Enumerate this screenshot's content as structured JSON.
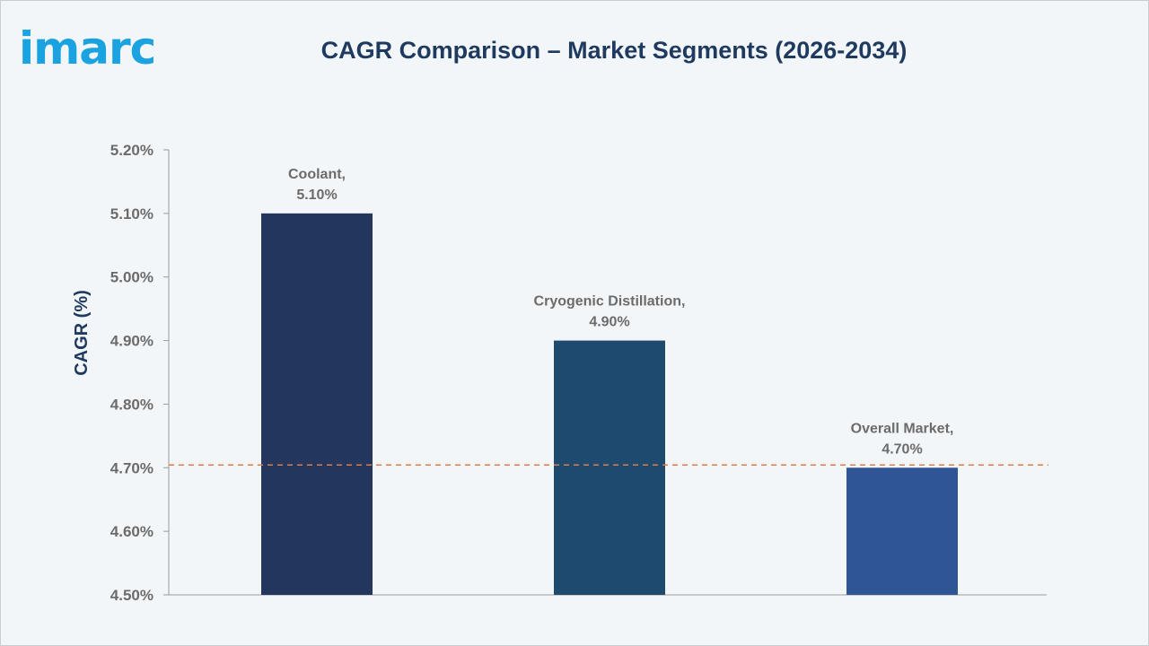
{
  "brand": {
    "logo_text": "imarc"
  },
  "chart_data": {
    "type": "bar",
    "title": "CAGR Comparison – Market Segments (2026-2034)",
    "ylabel": "CAGR (%)",
    "xlabel": "",
    "ylim": [
      4.5,
      5.2
    ],
    "yticks": [
      4.5,
      4.6,
      4.7,
      4.8,
      4.9,
      5.0,
      5.1,
      5.2
    ],
    "ytick_labels": [
      "4.50%",
      "4.60%",
      "4.70%",
      "4.80%",
      "4.90%",
      "5.00%",
      "5.10%",
      "5.20%"
    ],
    "categories": [
      "Coolant",
      "Cryogenic Distillation",
      "Overall Market"
    ],
    "values": [
      5.1,
      4.9,
      4.7
    ],
    "data_labels": [
      [
        "Coolant,",
        "5.10%"
      ],
      [
        "Cryogenic Distillation,",
        "4.90%"
      ],
      [
        "Overall Market,",
        "4.70%"
      ]
    ],
    "colors": [
      "#22365e",
      "#1f4a70",
      "#2f5597"
    ],
    "reference_line": {
      "value": 4.7,
      "color": "#e07b45",
      "style": "dashed"
    },
    "grid": false,
    "legend": "none"
  }
}
